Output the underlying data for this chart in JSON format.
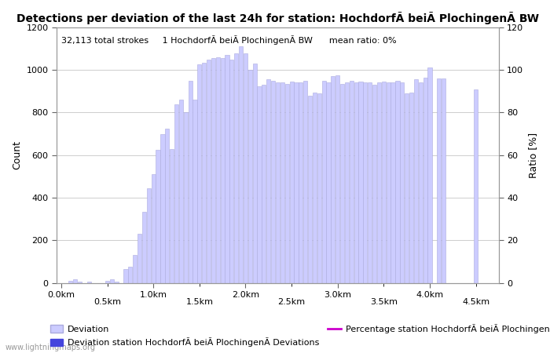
{
  "title": "Detections per deviation of the last 24h for station: HochdorfÃ beiÃ PlochingenÃ BW",
  "subtitle": "32,113 total strokes     1 HochdorfÃ beiÃ PlochingenÃ BW      mean ratio: 0%",
  "ylabel_left": "Count",
  "ylabel_right": "Ratio [%]",
  "watermark": "www.lightningmaps.org",
  "bar_positions": [
    0.1,
    0.15,
    0.2,
    0.25,
    0.3,
    0.35,
    0.4,
    0.45,
    0.5,
    0.55,
    0.6,
    0.65,
    0.7,
    0.75,
    0.8,
    0.85,
    0.9,
    0.95,
    1.0,
    1.05,
    1.1,
    1.15,
    1.2,
    1.25,
    1.3,
    1.35,
    1.4,
    1.45,
    1.5,
    1.55,
    1.6,
    1.65,
    1.7,
    1.75,
    1.8,
    1.85,
    1.9,
    1.95,
    2.0,
    2.05,
    2.1,
    2.15,
    2.2,
    2.25,
    2.3,
    2.35,
    2.4,
    2.45,
    2.5,
    2.55,
    2.6,
    2.65,
    2.7,
    2.75,
    2.8,
    2.85,
    2.9,
    2.95,
    3.0,
    3.05,
    3.1,
    3.15,
    3.2,
    3.25,
    3.3,
    3.35,
    3.4,
    3.45,
    3.5,
    3.55,
    3.6,
    3.65,
    3.7,
    3.75,
    3.8,
    3.85,
    3.9,
    3.95,
    4.0,
    4.05,
    4.1,
    4.15,
    4.2,
    4.25,
    4.3,
    4.35,
    4.4,
    4.45,
    4.5
  ],
  "bar_heights": [
    10,
    15,
    5,
    0,
    5,
    0,
    0,
    0,
    10,
    15,
    5,
    0,
    65,
    75,
    130,
    230,
    335,
    445,
    510,
    625,
    700,
    725,
    630,
    840,
    860,
    800,
    950,
    860,
    1025,
    1035,
    1050,
    1055,
    1060,
    1055,
    1070,
    1050,
    1080,
    1110,
    1080,
    1000,
    1030,
    925,
    930,
    955,
    950,
    940,
    940,
    935,
    945,
    940,
    940,
    950,
    880,
    895,
    890,
    950,
    940,
    970,
    975,
    935,
    940,
    950,
    940,
    945,
    940,
    940,
    930,
    940,
    945,
    940,
    940,
    950,
    940,
    890,
    895,
    955,
    940,
    965,
    1010,
    0,
    960,
    960,
    0,
    0,
    0,
    0,
    0,
    0,
    910
  ],
  "bar_color": "#ccccff",
  "bar_edge_color": "#aaaadd",
  "bar_width": 0.044,
  "ylim_left": [
    0,
    1200
  ],
  "ylim_right": [
    0,
    120
  ],
  "xlim": [
    -0.05,
    4.75
  ],
  "xticks": [
    0.0,
    1.0,
    2.0,
    3.0,
    4.0
  ],
  "xtick_labels": [
    "0.0km",
    "1.0km",
    "2.0km",
    "3.0km",
    "4.0km"
  ],
  "xtick_minor_positions": [
    0.5,
    1.5,
    2.5,
    3.5,
    4.5
  ],
  "xtick_minor_labels": [
    "",
    "",
    "",
    "",
    ""
  ],
  "yticks_left": [
    0,
    200,
    400,
    600,
    800,
    1000,
    1200
  ],
  "yticks_right": [
    0,
    20,
    40,
    60,
    80,
    100,
    120
  ],
  "grid_color": "#bbbbbb",
  "legend_deviation_color": "#ccccff",
  "legend_deviation_edge_color": "#aaaadd",
  "legend_deviation_station_color": "#4444dd",
  "legend_percentage_color": "#cc00cc",
  "legend_deviation_label": "Deviation",
  "legend_deviation_station_label": "Deviation station HochdorfÃ beiÃ PlochingenÃ Deviations",
  "legend_percentage_label": "Percentage station HochdorfÃ beiÃ PlochingenÃ BW",
  "title_fontsize": 10,
  "subtitle_fontsize": 8,
  "axis_fontsize": 9,
  "tick_fontsize": 8,
  "fig_width": 7.0,
  "fig_height": 4.5,
  "dpi": 100
}
